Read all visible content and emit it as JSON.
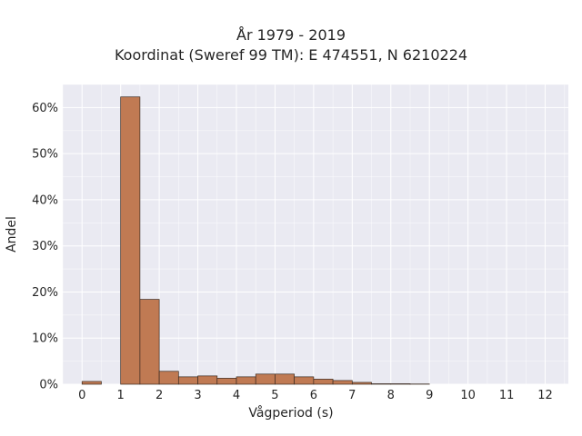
{
  "chart_data": {
    "type": "bar",
    "title_line1": "År 1979 - 2019",
    "title_line2": "Koordinat (Sweref 99 TM): E 474551, N 6210224",
    "xlabel": "Vågperiod (s)",
    "ylabel": "Andel",
    "xlim": [
      -0.5,
      12.6
    ],
    "ylim": [
      0,
      0.65
    ],
    "xticks": [
      0,
      1,
      2,
      3,
      4,
      5,
      6,
      7,
      8,
      9,
      10,
      11,
      12
    ],
    "xtick_labels": [
      "0",
      "1",
      "2",
      "3",
      "4",
      "5",
      "6",
      "7",
      "8",
      "9",
      "10",
      "11",
      "12"
    ],
    "yticks": [
      0,
      0.1,
      0.2,
      0.3,
      0.4,
      0.5,
      0.6
    ],
    "ytick_labels": [
      "0%",
      "10%",
      "20%",
      "30%",
      "40%",
      "50%",
      "60%"
    ],
    "bin_width": 0.5,
    "bins": [
      {
        "x0": 0.0,
        "value": 0.006
      },
      {
        "x0": 0.5,
        "value": 0.0
      },
      {
        "x0": 1.0,
        "value": 0.623
      },
      {
        "x0": 1.5,
        "value": 0.184
      },
      {
        "x0": 2.0,
        "value": 0.028
      },
      {
        "x0": 2.5,
        "value": 0.016
      },
      {
        "x0": 3.0,
        "value": 0.018
      },
      {
        "x0": 3.5,
        "value": 0.013
      },
      {
        "x0": 4.0,
        "value": 0.016
      },
      {
        "x0": 4.5,
        "value": 0.022
      },
      {
        "x0": 5.0,
        "value": 0.022
      },
      {
        "x0": 5.5,
        "value": 0.016
      },
      {
        "x0": 6.0,
        "value": 0.011
      },
      {
        "x0": 6.5,
        "value": 0.008
      },
      {
        "x0": 7.0,
        "value": 0.004
      },
      {
        "x0": 7.5,
        "value": 0.001
      },
      {
        "x0": 8.0,
        "value": 0.001
      },
      {
        "x0": 8.5,
        "value": 0.0005
      }
    ],
    "grid": true,
    "colors": {
      "bar": "#c07a53",
      "bar_edge": "#3a2a20",
      "plot_bg": "#eaeaf2",
      "grid": "#ffffff"
    }
  }
}
